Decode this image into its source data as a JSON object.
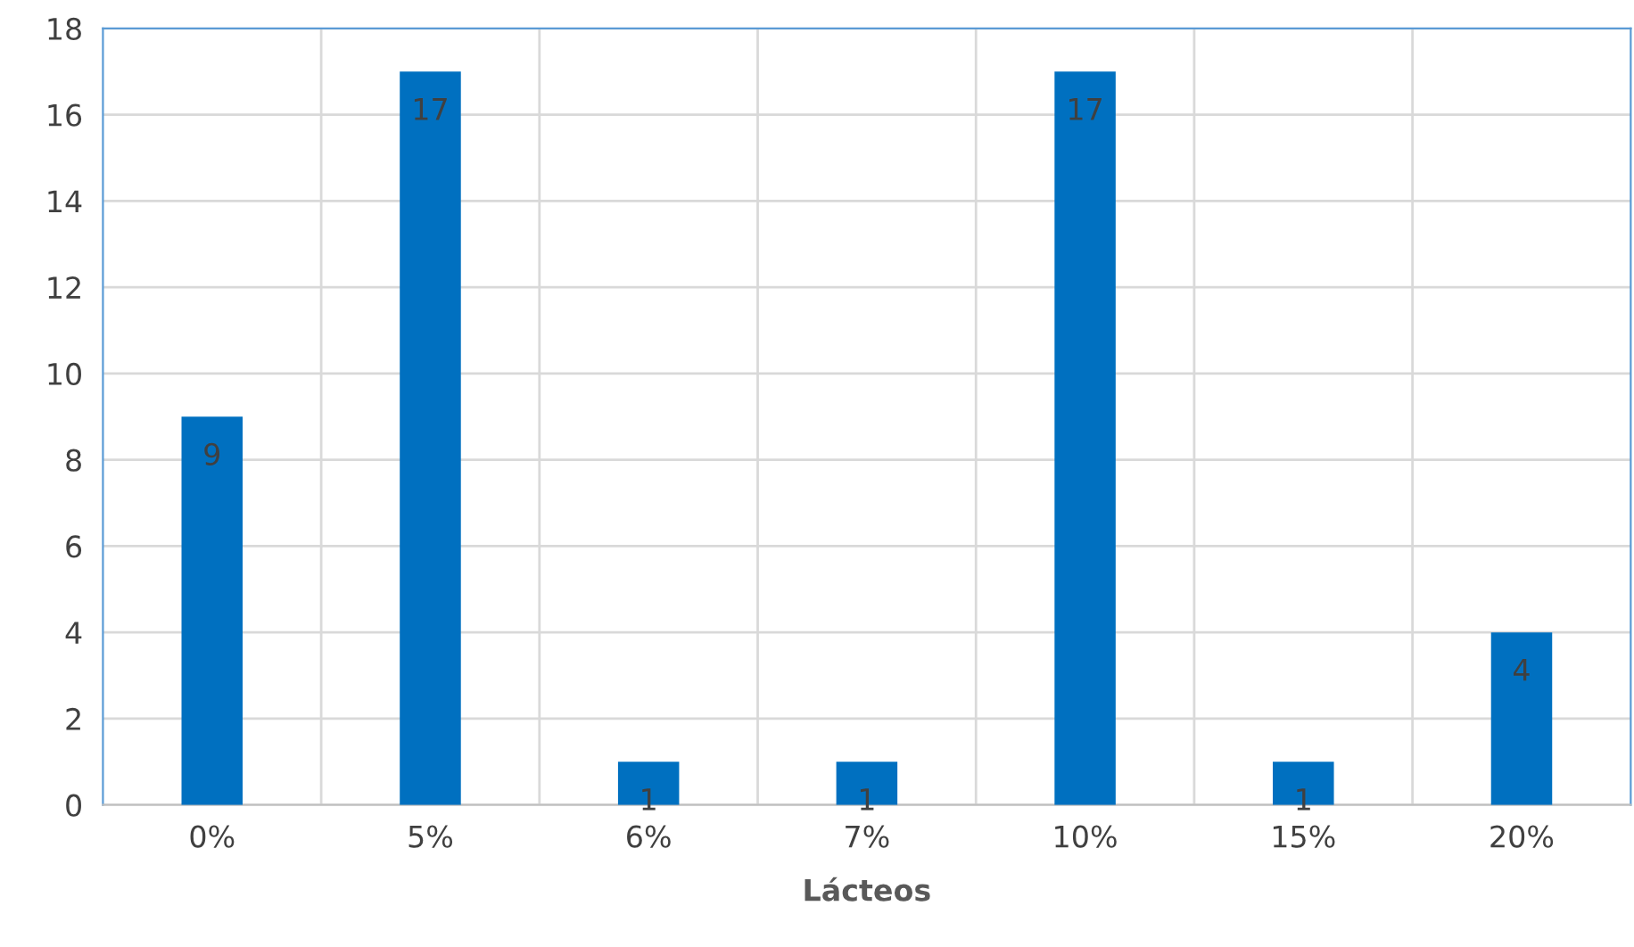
{
  "chart_data": {
    "type": "bar",
    "xlabel": "Lácteos",
    "categories": [
      "0%",
      "5%",
      "6%",
      "7%",
      "10%",
      "15%",
      "20%"
    ],
    "values": [
      9,
      17,
      1,
      1,
      17,
      1,
      4
    ],
    "color": "#0070c0",
    "ylim": [
      0,
      18
    ],
    "yticks": [
      0,
      2,
      4,
      6,
      8,
      10,
      12,
      14,
      16,
      18
    ],
    "grid": true,
    "data_labels": true
  }
}
